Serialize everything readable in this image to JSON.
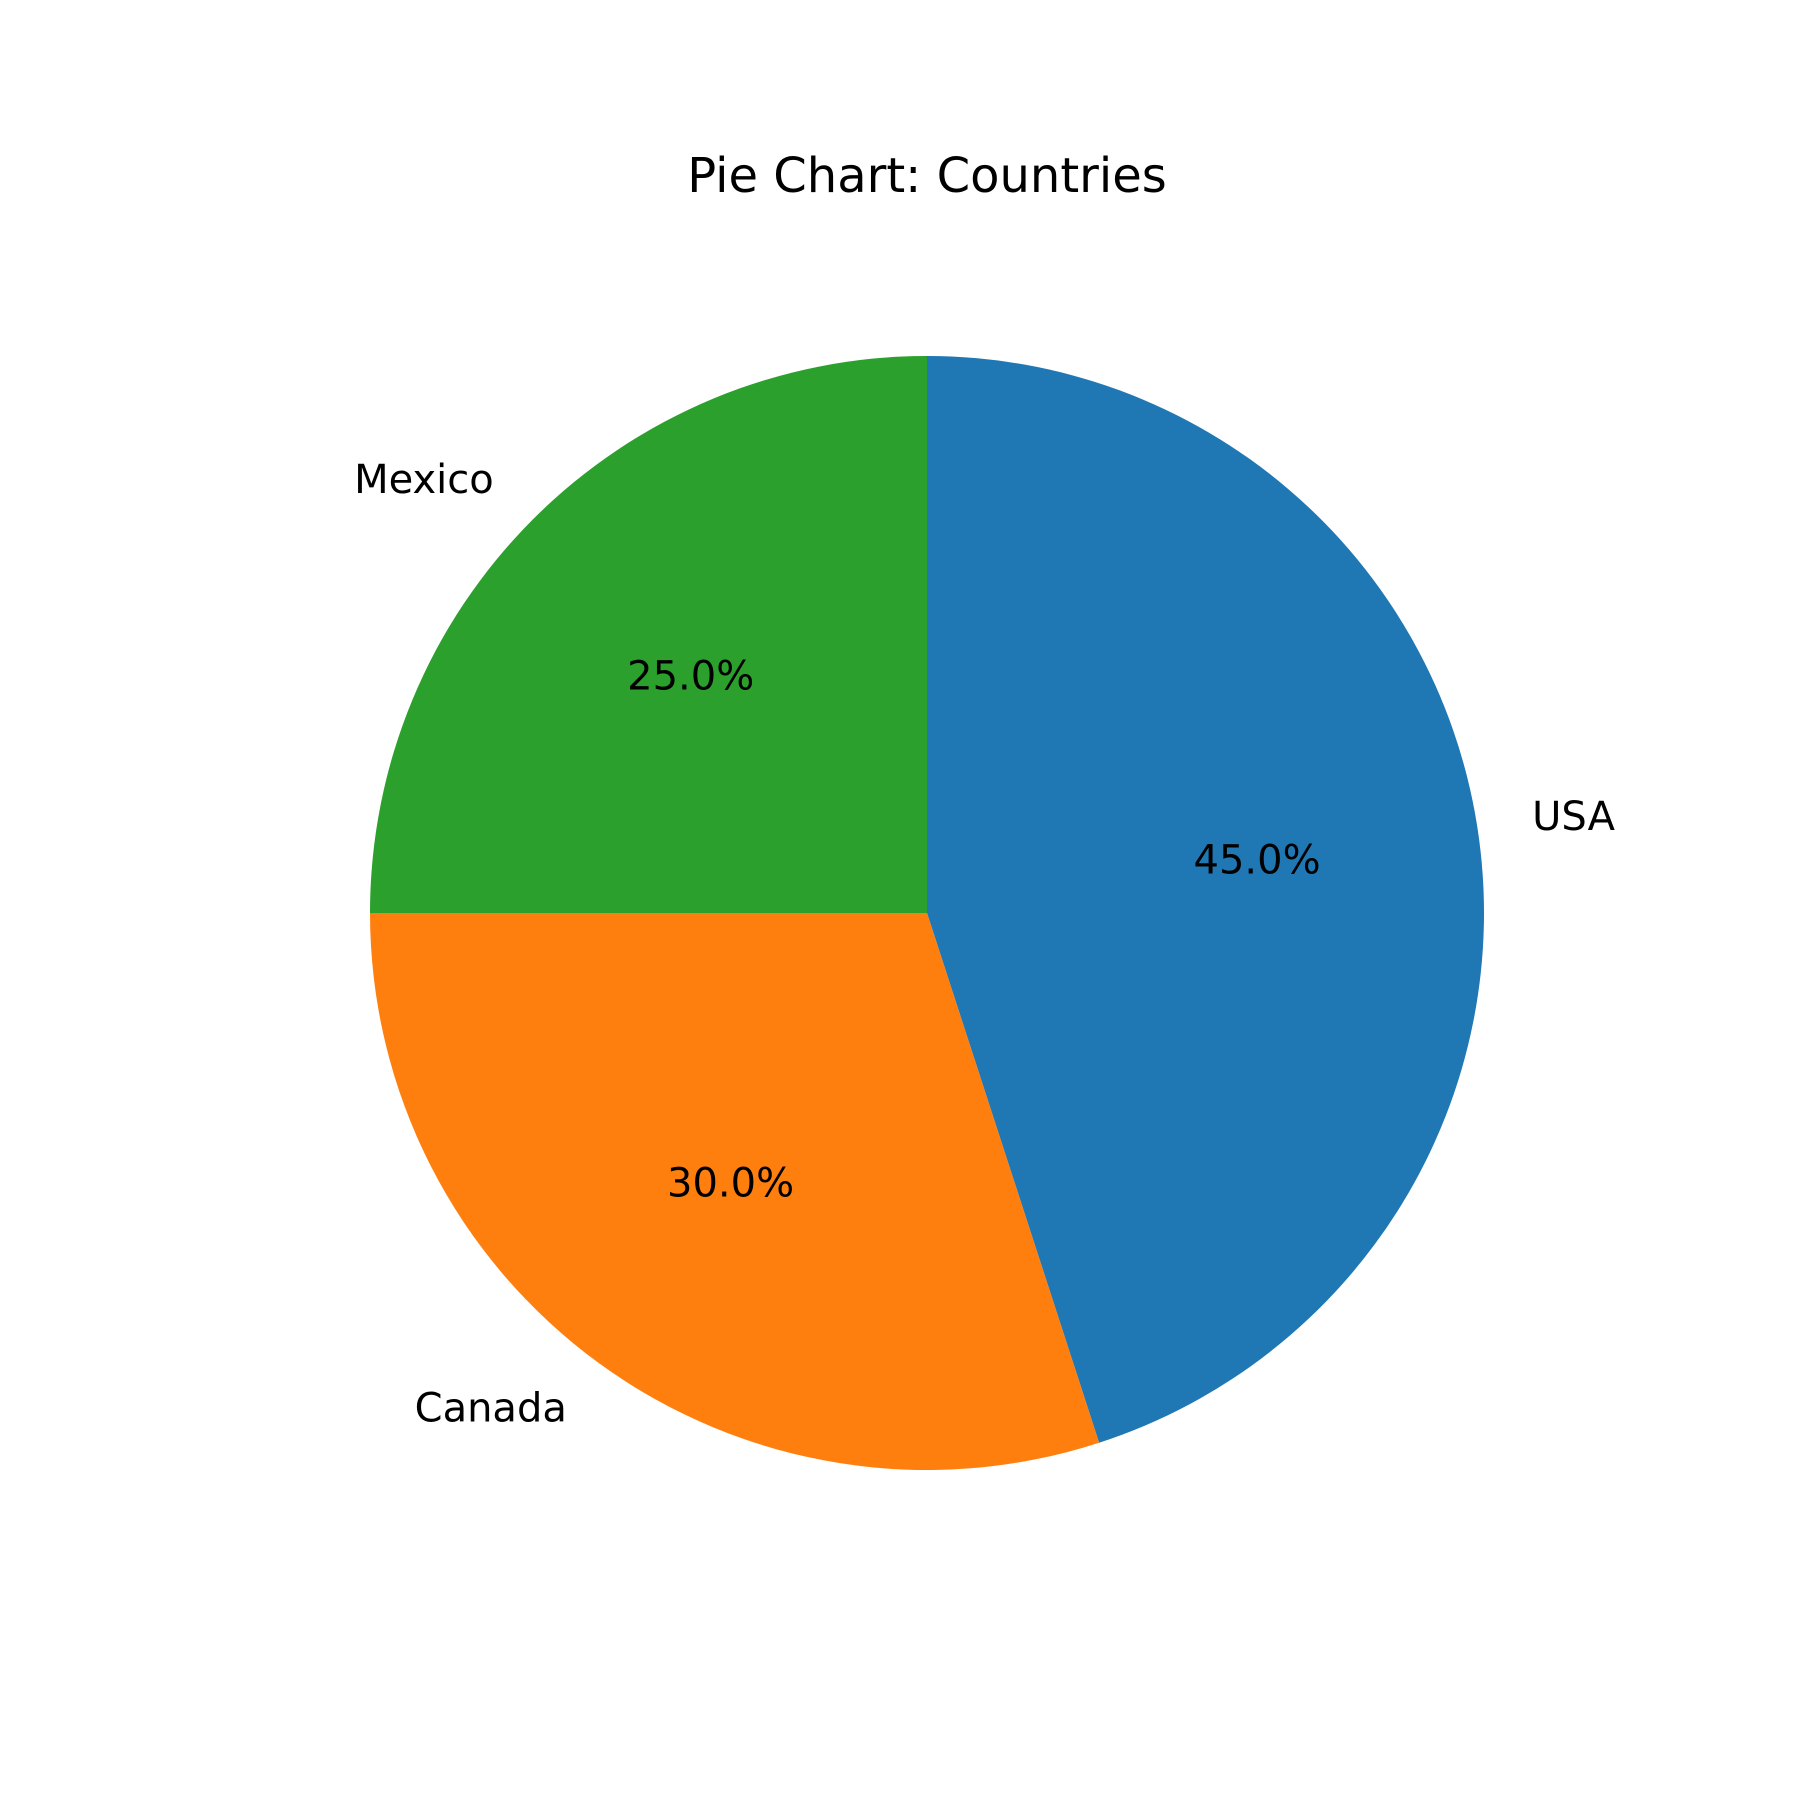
{
  "chart_data": {
    "type": "pie",
    "title": "Pie Chart: Countries",
    "start_angle_deg": 90,
    "direction": "clockwise",
    "legend": "none",
    "slices": [
      {
        "label": "USA",
        "value": 45.0,
        "pct_label": "45.0%",
        "color": "#1f77b4"
      },
      {
        "label": "Canada",
        "value": 30.0,
        "pct_label": "30.0%",
        "color": "#ff7f0e"
      },
      {
        "label": "Mexico",
        "value": 25.0,
        "pct_label": "25.0%",
        "color": "#2ca02c"
      }
    ]
  }
}
